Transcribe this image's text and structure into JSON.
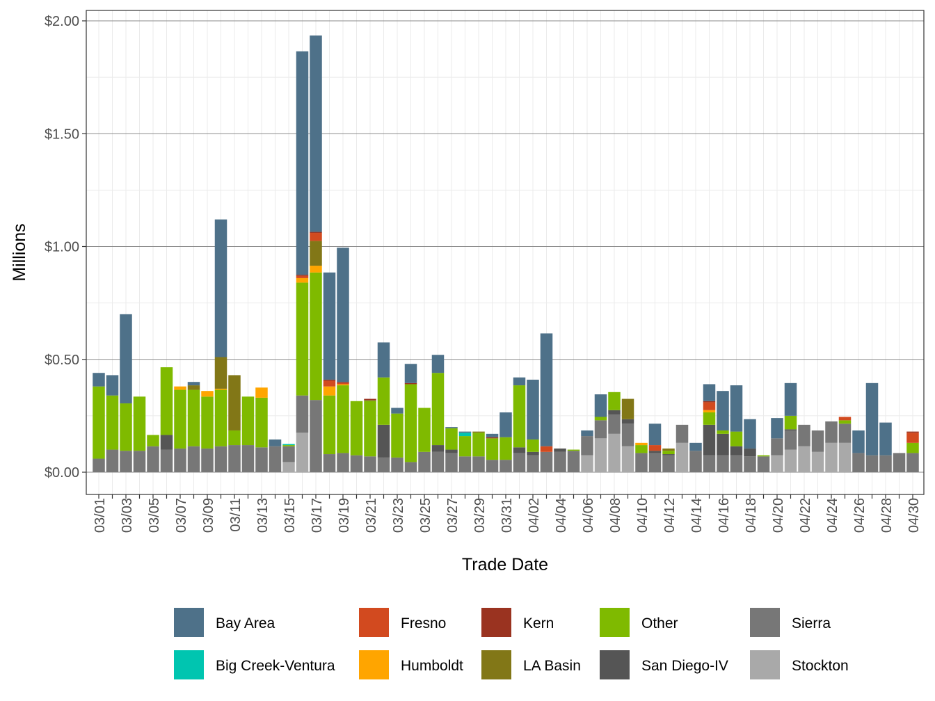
{
  "chart_data": {
    "type": "bar",
    "stacked": true,
    "xlabel": "Trade Date",
    "ylabel": "Millions",
    "ylim": [
      -0.1,
      2.05
    ],
    "y_ticks": [
      0,
      0.5,
      1.0,
      1.5,
      2.0
    ],
    "y_tick_labels": [
      "$0.00",
      "$0.50",
      "$1.00",
      "$1.50",
      "$2.00"
    ],
    "grid": true,
    "legend_position": "bottom",
    "categories": [
      "03/01",
      "03/02",
      "03/03",
      "03/04",
      "03/05",
      "03/06",
      "03/07",
      "03/08",
      "03/09",
      "03/10",
      "03/11",
      "03/12",
      "03/13",
      "03/14",
      "03/15",
      "03/16",
      "03/17",
      "03/18",
      "03/19",
      "03/20",
      "03/21",
      "03/22",
      "03/23",
      "03/24",
      "03/25",
      "03/26",
      "03/27",
      "03/28",
      "03/29",
      "03/30",
      "03/31",
      "04/01",
      "04/02",
      "04/03",
      "04/04",
      "04/05",
      "04/06",
      "04/07",
      "04/08",
      "04/09",
      "04/10",
      "04/11",
      "04/12",
      "04/13",
      "04/14",
      "04/15",
      "04/16",
      "04/17",
      "04/18",
      "04/19",
      "04/20",
      "04/21",
      "04/22",
      "04/23",
      "04/24",
      "04/25",
      "04/26",
      "04/27",
      "04/28",
      "04/29",
      "04/30"
    ],
    "x_tick_labels": [
      "03/01",
      "03/03",
      "03/05",
      "03/07",
      "03/09",
      "03/11",
      "03/13",
      "03/15",
      "03/17",
      "03/19",
      "03/21",
      "03/23",
      "03/25",
      "03/27",
      "03/29",
      "03/31",
      "04/02",
      "04/04",
      "04/06",
      "04/08",
      "04/10",
      "04/12",
      "04/14",
      "04/16",
      "04/18",
      "04/20",
      "04/22",
      "04/24",
      "04/26",
      "04/28",
      "04/30"
    ],
    "series": [
      {
        "name": "Stockton",
        "color": "#a9a9a9",
        "values": [
          0,
          0,
          0,
          0,
          0,
          0,
          0,
          0,
          0,
          0,
          0,
          0,
          0,
          0,
          0.045,
          0.175,
          0,
          0,
          0,
          0,
          0,
          0,
          0,
          0,
          0,
          0,
          0,
          0,
          0,
          0,
          0,
          0,
          0,
          0,
          0,
          0,
          0.075,
          0.15,
          0.17,
          0.115,
          0,
          0,
          0,
          0.13,
          0,
          0,
          0,
          0,
          0,
          0,
          0.075,
          0.1,
          0.115,
          0.09,
          0.13,
          0.13,
          0,
          0,
          0,
          0,
          0
        ]
      },
      {
        "name": "Sierra",
        "color": "#777777",
        "values": [
          0.06,
          0.1,
          0.095,
          0.095,
          0.115,
          0.1,
          0.105,
          0.115,
          0.105,
          0.115,
          0.12,
          0.12,
          0.11,
          0.115,
          0.07,
          0.165,
          0.32,
          0.08,
          0.085,
          0.075,
          0.07,
          0.065,
          0.065,
          0.045,
          0.09,
          0.09,
          0.085,
          0.07,
          0.07,
          0.055,
          0.055,
          0.085,
          0.075,
          0.09,
          0.09,
          0.095,
          0.085,
          0.08,
          0.085,
          0.1,
          0.085,
          0.085,
          0.075,
          0.08,
          0.095,
          0.075,
          0.075,
          0.075,
          0.07,
          0.07,
          0.075,
          0.085,
          0.095,
          0.095,
          0.095,
          0.085,
          0.085,
          0.075,
          0.075,
          0.085,
          0.085
        ]
      },
      {
        "name": "San Diego-IV",
        "color": "#555555",
        "values": [
          0,
          0,
          0,
          0,
          0,
          0.065,
          0,
          0,
          0,
          0,
          0,
          0,
          0,
          0,
          0,
          0,
          0,
          0,
          0,
          0,
          0,
          0.145,
          0,
          0,
          0,
          0.03,
          0.015,
          0,
          0,
          0,
          0,
          0.025,
          0.015,
          0,
          0.015,
          0,
          0,
          0,
          0.02,
          0.02,
          0,
          0.01,
          0.005,
          0,
          0,
          0.135,
          0.095,
          0.04,
          0.035,
          0,
          0,
          0.005,
          0,
          0,
          0,
          0,
          0,
          0,
          0,
          0,
          0
        ]
      },
      {
        "name": "Other",
        "color": "#7fba00",
        "values": [
          0.32,
          0.24,
          0.21,
          0.24,
          0.05,
          0.3,
          0.26,
          0.25,
          0.23,
          0.25,
          0.065,
          0.215,
          0.22,
          0,
          0.005,
          0.5,
          0.565,
          0.26,
          0.3,
          0.24,
          0.245,
          0.21,
          0.195,
          0.345,
          0.195,
          0.32,
          0.095,
          0.09,
          0.105,
          0.095,
          0.1,
          0.275,
          0.055,
          0,
          0,
          0.005,
          0,
          0.015,
          0.08,
          0,
          0.035,
          0,
          0.015,
          0,
          0,
          0.055,
          0.015,
          0.065,
          0,
          0.005,
          0,
          0.06,
          0,
          0,
          0,
          0.015,
          0,
          0,
          0,
          0,
          0.045
        ]
      },
      {
        "name": "Big Creek-Ventura",
        "color": "#00c5b0",
        "values": [
          0,
          0,
          0,
          0,
          0,
          0,
          0,
          0,
          0,
          0,
          0,
          0,
          0,
          0,
          0.005,
          0,
          0,
          0,
          0,
          0,
          0,
          0,
          0,
          0,
          0,
          0,
          0,
          0.015,
          0,
          0,
          0,
          0,
          0,
          0,
          0,
          0,
          0,
          0,
          0,
          0,
          0,
          0,
          0,
          0,
          0,
          0,
          0,
          0,
          0,
          0,
          0,
          0,
          0,
          0,
          0,
          0,
          0,
          0,
          0,
          0,
          0
        ]
      },
      {
        "name": "Humboldt",
        "color": "#ffa500",
        "values": [
          0,
          0,
          0,
          0,
          0,
          0,
          0.015,
          0,
          0.025,
          0.005,
          0,
          0,
          0.045,
          0,
          0,
          0.02,
          0.03,
          0.04,
          0.005,
          0,
          0,
          0,
          0,
          0,
          0,
          0,
          0,
          0,
          0,
          0,
          0,
          0,
          0,
          0,
          0,
          0,
          0,
          0,
          0,
          0,
          0.01,
          0,
          0,
          0,
          0,
          0.01,
          0,
          0,
          0,
          0,
          0,
          0,
          0,
          0,
          0,
          0,
          0,
          0,
          0,
          0,
          0
        ]
      },
      {
        "name": "LA Basin",
        "color": "#827717",
        "values": [
          0,
          0,
          0,
          0,
          0,
          0,
          0,
          0.02,
          0,
          0.14,
          0.245,
          0,
          0,
          0,
          0,
          0,
          0.11,
          0,
          0,
          0,
          0.005,
          0,
          0,
          0,
          0,
          0,
          0,
          0,
          0.005,
          0,
          0,
          0,
          0,
          0,
          0,
          0,
          0,
          0,
          0,
          0.09,
          0,
          0,
          0.01,
          0,
          0,
          0,
          0,
          0,
          0,
          0,
          0,
          0,
          0,
          0,
          0,
          0,
          0,
          0,
          0,
          0,
          0
        ]
      },
      {
        "name": "Fresno",
        "color": "#d24a1f",
        "values": [
          0,
          0,
          0,
          0,
          0,
          0,
          0,
          0,
          0,
          0,
          0,
          0,
          0,
          0,
          0,
          0.01,
          0.035,
          0.025,
          0.005,
          0,
          0,
          0,
          0,
          0,
          0,
          0,
          0,
          0,
          0,
          0,
          0,
          0,
          0,
          0.025,
          0,
          0,
          0,
          0,
          0,
          0,
          0,
          0.025,
          0,
          0,
          0,
          0.035,
          0,
          0,
          0,
          0,
          0,
          0,
          0,
          0,
          0,
          0.015,
          0,
          0,
          0,
          0,
          0.045
        ]
      },
      {
        "name": "Kern",
        "color": "#9a3320",
        "values": [
          0,
          0,
          0,
          0,
          0,
          0,
          0,
          0,
          0,
          0,
          0,
          0,
          0,
          0,
          0,
          0.005,
          0.005,
          0.005,
          0.005,
          0,
          0.005,
          0,
          0,
          0.005,
          0,
          0,
          0,
          0,
          0,
          0.005,
          0,
          0,
          0,
          0,
          0,
          0,
          0,
          0,
          0,
          0,
          0,
          0,
          0,
          0,
          0,
          0.005,
          0,
          0,
          0,
          0,
          0,
          0,
          0,
          0,
          0,
          0,
          0,
          0,
          0,
          0,
          0.005
        ]
      },
      {
        "name": "Bay Area",
        "color": "#4e7189",
        "values": [
          0.06,
          0.09,
          0.395,
          0,
          0,
          0,
          0,
          0.015,
          0,
          0.61,
          0,
          0,
          0,
          0.03,
          0,
          0.99,
          0.87,
          0.475,
          0.595,
          0,
          0,
          0.155,
          0.025,
          0.085,
          0,
          0.08,
          0.005,
          0.005,
          0,
          0.015,
          0.11,
          0.035,
          0.265,
          0.5,
          0,
          0,
          0.025,
          0.1,
          0,
          0,
          0,
          0.095,
          0,
          0,
          0.035,
          0.075,
          0.175,
          0.205,
          0.13,
          0,
          0.09,
          0.145,
          0,
          0,
          0,
          0,
          0.1,
          0.32,
          0.145,
          0,
          0
        ]
      }
    ],
    "legend": {
      "rows": [
        [
          "Bay Area",
          "Fresno",
          "Kern",
          "Other",
          "Sierra"
        ],
        [
          "Big Creek-Ventura",
          "Humboldt",
          "LA Basin",
          "San Diego-IV",
          "Stockton"
        ]
      ]
    }
  }
}
